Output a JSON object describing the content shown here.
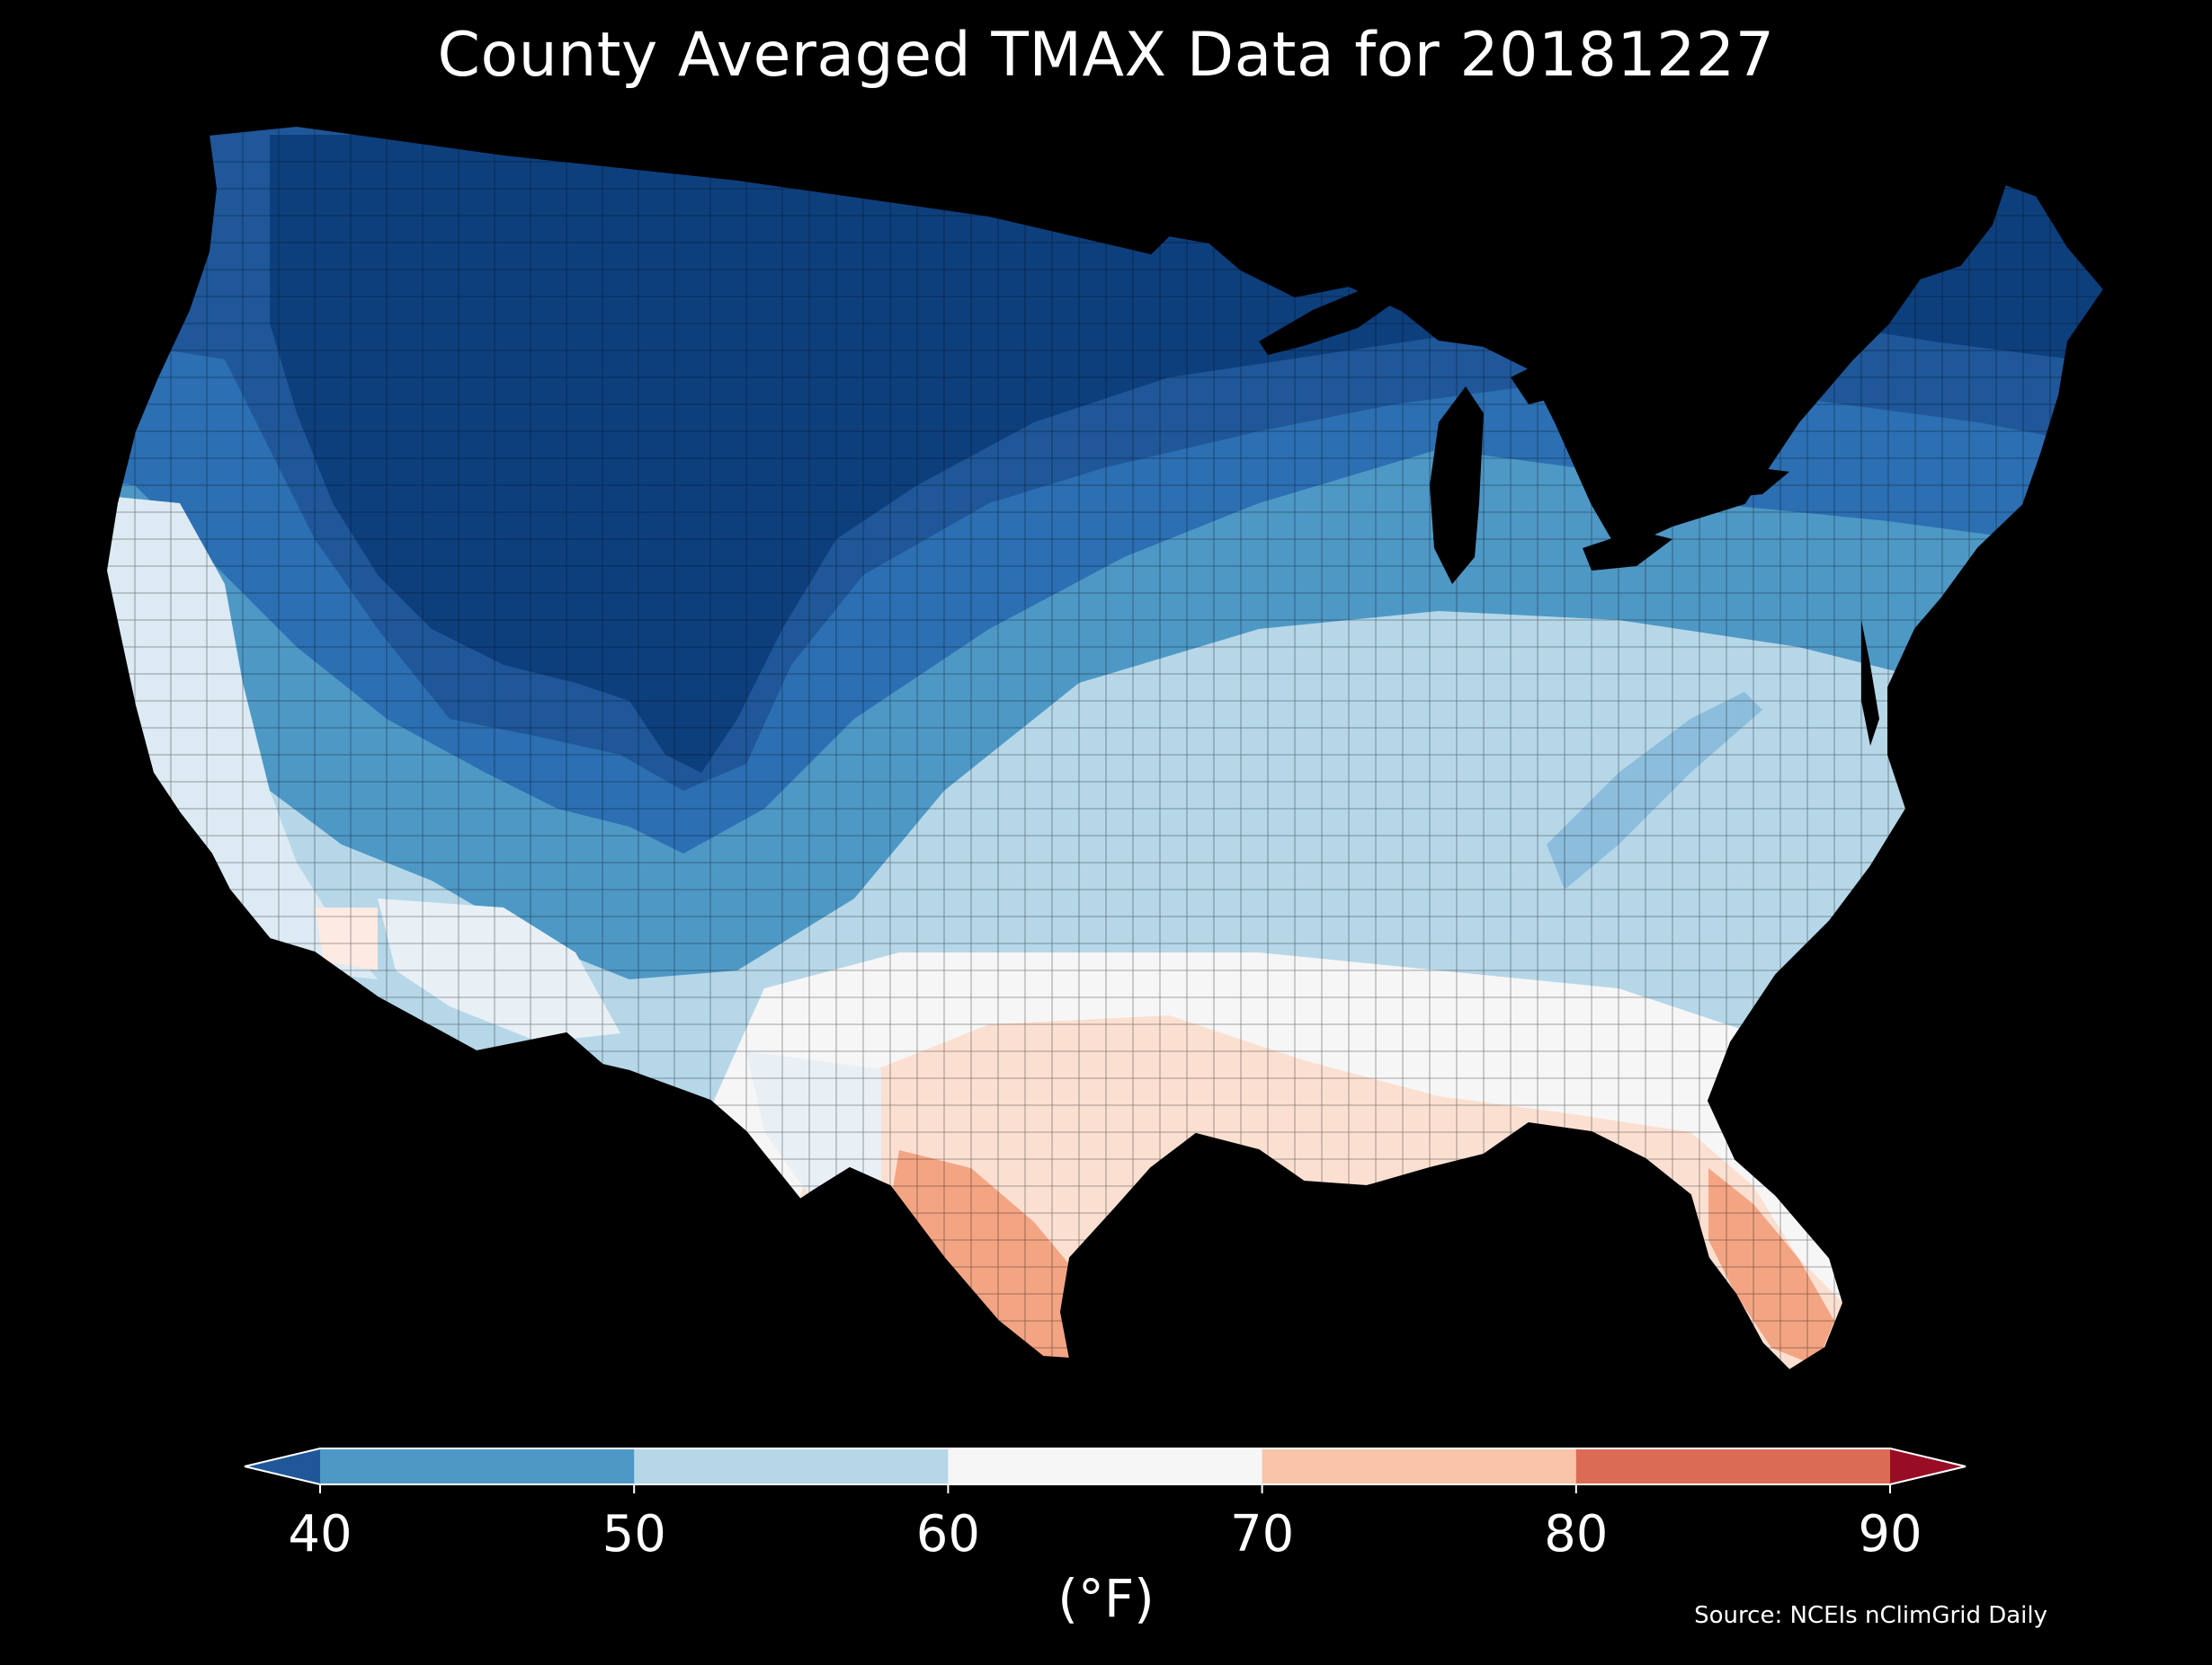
{
  "title": "County Averaged TMAX Data for 20181227",
  "source": "Source: NCEIs nClimGrid Daily",
  "colorbar": {
    "unit": "(°F)",
    "ticks": [
      "40",
      "50",
      "60",
      "70",
      "80",
      "90"
    ],
    "bins": [
      {
        "range": "<40",
        "color": "#1f5799"
      },
      {
        "range": "40-50",
        "color": "#4e98c6"
      },
      {
        "range": "50-60",
        "color": "#b6d7e8"
      },
      {
        "range": "60-70",
        "color": "#f6f6f6"
      },
      {
        "range": "70-80",
        "color": "#f9c4a9"
      },
      {
        "range": "80-90",
        "color": "#db6b55"
      },
      {
        "range": ">90",
        "color": "#980c25"
      }
    ]
  },
  "map": {
    "region": "Contiguous United States",
    "variable": "TMAX",
    "pattern": "cold (<40°F) across northern tier and Rockies; 50-60°F central plains and mid-Atlantic; 60-70°F southeast; 70-80°F south Texas and Florida"
  },
  "colors": {
    "background": "#000000",
    "text": "#ffffff"
  }
}
